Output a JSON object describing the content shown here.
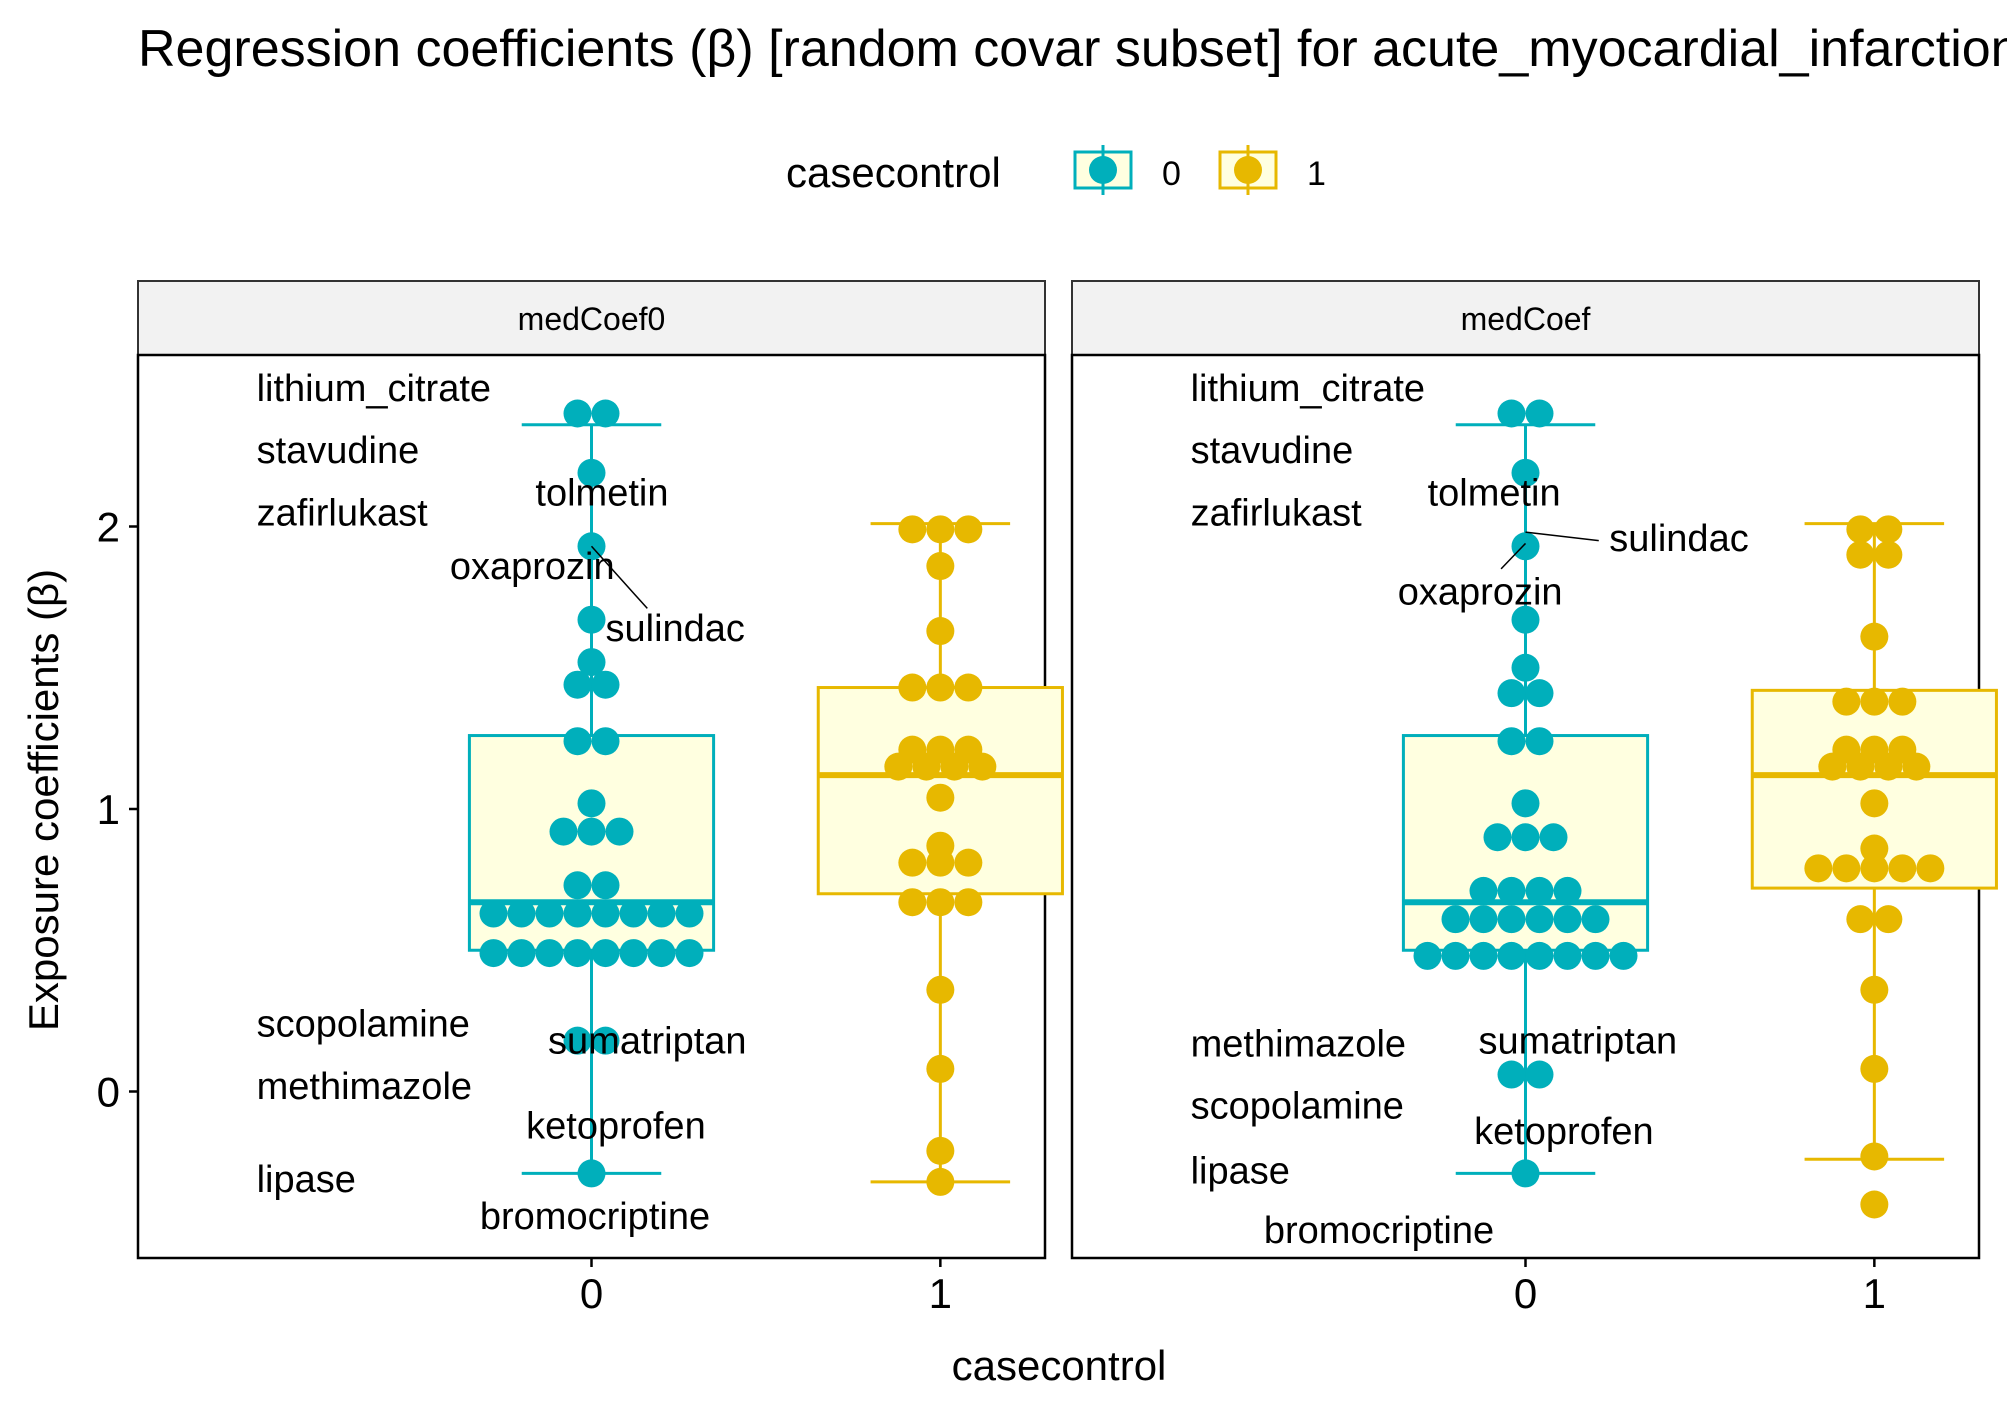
{
  "chart_data": {
    "type": "box-dotplot",
    "title": "Regression coefficients (β) [random covar subset]  for acute_myocardial_infarction",
    "ylabel": "Exposure coefficients (β)",
    "xlabel": "casecontrol",
    "x_categories": [
      "0",
      "1"
    ],
    "y_ticks": [
      0,
      1,
      2
    ],
    "ylim": [
      -0.6,
      2.58
    ],
    "legend": {
      "title": "casecontrol",
      "position": "top",
      "entries": [
        {
          "label": "0",
          "color": "#00AFBB"
        },
        {
          "label": "1",
          "color": "#E7B800"
        }
      ]
    },
    "box_fill": "#FFFFE0",
    "panels": [
      {
        "strip": "medCoef0",
        "groups": [
          {
            "x": "0",
            "color": "#00AFBB",
            "box": {
              "q1": 0.5,
              "median": 0.67,
              "q3": 1.26,
              "whisker_low": -0.29,
              "whisker_high": 2.36
            },
            "points": [
              {
                "y": 2.4,
                "n": 2
              },
              {
                "y": 2.19,
                "n": 1
              },
              {
                "y": 1.93,
                "n": 1
              },
              {
                "y": 1.67,
                "n": 1
              },
              {
                "y": 1.52,
                "n": 1
              },
              {
                "y": 1.44,
                "n": 2
              },
              {
                "y": 1.24,
                "n": 2
              },
              {
                "y": 1.02,
                "n": 1
              },
              {
                "y": 0.92,
                "n": 3
              },
              {
                "y": 0.73,
                "n": 2
              },
              {
                "y": 0.63,
                "n": 8
              },
              {
                "y": 0.49,
                "n": 8
              },
              {
                "y": 0.18,
                "n": 2
              },
              {
                "y": -0.29,
                "n": 1
              }
            ]
          },
          {
            "x": "1",
            "color": "#E7B800",
            "box": {
              "q1": 0.7,
              "median": 1.12,
              "q3": 1.43,
              "whisker_low": -0.32,
              "whisker_high": 2.01
            },
            "points": [
              {
                "y": 1.99,
                "n": 3
              },
              {
                "y": 1.86,
                "n": 1
              },
              {
                "y": 1.63,
                "n": 1
              },
              {
                "y": 1.43,
                "n": 3
              },
              {
                "y": 1.21,
                "n": 3
              },
              {
                "y": 1.15,
                "n": 4
              },
              {
                "y": 1.04,
                "n": 1
              },
              {
                "y": 0.87,
                "n": 1
              },
              {
                "y": 0.81,
                "n": 3
              },
              {
                "y": 0.67,
                "n": 3
              },
              {
                "y": 0.36,
                "n": 1
              },
              {
                "y": 0.08,
                "n": 1
              },
              {
                "y": -0.21,
                "n": 1
              },
              {
                "y": -0.32,
                "n": 1
              }
            ]
          }
        ],
        "labels": [
          {
            "text": "lithium_citrate",
            "x": -0.96,
            "y": 2.49,
            "anchor": "start"
          },
          {
            "text": "stavudine",
            "x": -0.96,
            "y": 2.27,
            "anchor": "start"
          },
          {
            "text": "zafirlukast",
            "x": -0.96,
            "y": 2.05,
            "anchor": "start"
          },
          {
            "text": "tolmetin",
            "x": 0.03,
            "y": 2.12,
            "anchor": "middle"
          },
          {
            "text": "oxaprozin",
            "x": -0.17,
            "y": 1.86,
            "anchor": "middle"
          },
          {
            "text": "sulindac",
            "x": 0.24,
            "y": 1.64,
            "anchor": "middle"
          },
          {
            "text": "scopolamine",
            "x": -0.96,
            "y": 0.24,
            "anchor": "start"
          },
          {
            "text": "sumatriptan",
            "x": 0.16,
            "y": 0.18,
            "anchor": "middle"
          },
          {
            "text": "methimazole",
            "x": -0.96,
            "y": 0.02,
            "anchor": "start"
          },
          {
            "text": "ketoprofen",
            "x": 0.07,
            "y": -0.12,
            "anchor": "middle"
          },
          {
            "text": "lipase",
            "x": -0.96,
            "y": -0.31,
            "anchor": "start"
          },
          {
            "text": "bromocriptine",
            "x": 0.01,
            "y": -0.44,
            "anchor": "middle"
          }
        ],
        "segments": [
          {
            "x1": 0.0,
            "y1": 1.93,
            "x2": 0.16,
            "y2": 1.71
          }
        ]
      },
      {
        "strip": "medCoef",
        "groups": [
          {
            "x": "0",
            "color": "#00AFBB",
            "box": {
              "q1": 0.5,
              "median": 0.67,
              "q3": 1.26,
              "whisker_low": -0.29,
              "whisker_high": 2.36
            },
            "points": [
              {
                "y": 2.4,
                "n": 2
              },
              {
                "y": 2.19,
                "n": 1
              },
              {
                "y": 1.93,
                "n": 1
              },
              {
                "y": 1.67,
                "n": 1
              },
              {
                "y": 1.5,
                "n": 1
              },
              {
                "y": 1.41,
                "n": 2
              },
              {
                "y": 1.24,
                "n": 2
              },
              {
                "y": 1.02,
                "n": 1
              },
              {
                "y": 0.9,
                "n": 3
              },
              {
                "y": 0.71,
                "n": 4
              },
              {
                "y": 0.61,
                "n": 6
              },
              {
                "y": 0.48,
                "n": 8
              },
              {
                "y": 0.06,
                "n": 2
              },
              {
                "y": -0.29,
                "n": 1
              }
            ]
          },
          {
            "x": "1",
            "color": "#E7B800",
            "box": {
              "q1": 0.72,
              "median": 1.12,
              "q3": 1.42,
              "whisker_low": -0.24,
              "whisker_high": 2.01
            },
            "points": [
              {
                "y": 1.99,
                "n": 2
              },
              {
                "y": 1.9,
                "n": 2
              },
              {
                "y": 1.61,
                "n": 1
              },
              {
                "y": 1.38,
                "n": 3
              },
              {
                "y": 1.21,
                "n": 3
              },
              {
                "y": 1.15,
                "n": 4
              },
              {
                "y": 1.02,
                "n": 1
              },
              {
                "y": 0.86,
                "n": 1
              },
              {
                "y": 0.79,
                "n": 5
              },
              {
                "y": 0.61,
                "n": 2
              },
              {
                "y": 0.36,
                "n": 1
              },
              {
                "y": 0.08,
                "n": 1
              },
              {
                "y": -0.23,
                "n": 1
              },
              {
                "y": -0.4,
                "n": 1
              }
            ]
          }
        ],
        "labels": [
          {
            "text": "lithium_citrate",
            "x": -0.96,
            "y": 2.49,
            "anchor": "start"
          },
          {
            "text": "stavudine",
            "x": -0.96,
            "y": 2.27,
            "anchor": "start"
          },
          {
            "text": "zafirlukast",
            "x": -0.96,
            "y": 2.05,
            "anchor": "start"
          },
          {
            "text": "tolmetin",
            "x": -0.09,
            "y": 2.12,
            "anchor": "middle"
          },
          {
            "text": "sulindac",
            "x": 0.44,
            "y": 1.96,
            "anchor": "middle"
          },
          {
            "text": "oxaprozin",
            "x": -0.13,
            "y": 1.77,
            "anchor": "middle"
          },
          {
            "text": "methimazole",
            "x": -0.96,
            "y": 0.17,
            "anchor": "start"
          },
          {
            "text": "sumatriptan",
            "x": 0.15,
            "y": 0.18,
            "anchor": "middle"
          },
          {
            "text": "scopolamine",
            "x": -0.96,
            "y": -0.05,
            "anchor": "start"
          },
          {
            "text": "ketoprofen",
            "x": 0.11,
            "y": -0.14,
            "anchor": "middle"
          },
          {
            "text": "lipase",
            "x": -0.96,
            "y": -0.28,
            "anchor": "start"
          },
          {
            "text": "bromocriptine",
            "x": -0.42,
            "y": -0.49,
            "anchor": "middle"
          }
        ],
        "segments": [
          {
            "x1": 0.0,
            "y1": 1.98,
            "x2": 0.21,
            "y2": 1.95
          },
          {
            "x1": 0.0,
            "y1": 1.94,
            "x2": -0.07,
            "y2": 1.85
          }
        ]
      }
    ]
  }
}
